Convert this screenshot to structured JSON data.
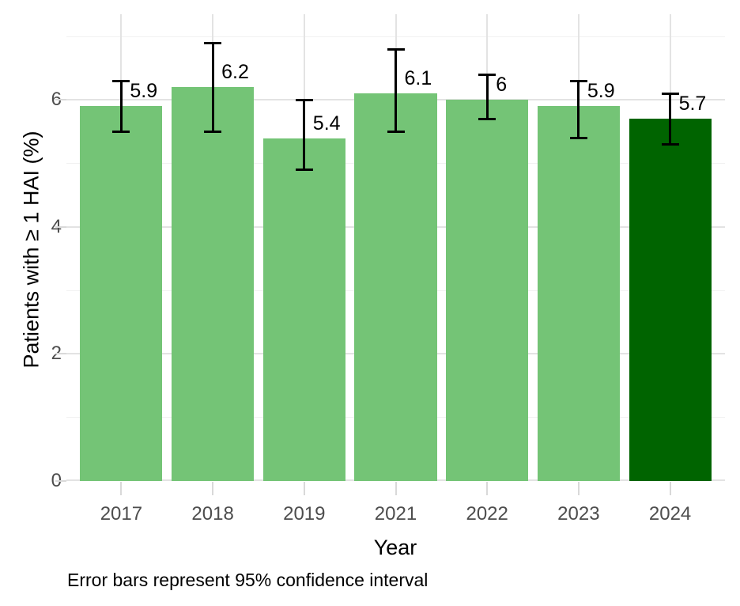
{
  "chart_data": {
    "type": "bar",
    "title": "",
    "xlabel": "Year",
    "ylabel": "Patients with ≥ 1 HAI (%)",
    "caption": "Error bars represent 95% confidence interval",
    "categories": [
      "2017",
      "2018",
      "2019",
      "2021",
      "2022",
      "2023",
      "2024"
    ],
    "values": [
      5.9,
      6.2,
      5.4,
      6.1,
      6.0,
      5.9,
      5.7
    ],
    "bar_value_labels": [
      "5.9",
      "6.2",
      "5.4",
      "6.1",
      "6",
      "5.9",
      "5.7"
    ],
    "error_bars": {
      "meaning": "95% confidence interval",
      "lower": [
        5.5,
        5.5,
        4.9,
        5.5,
        5.7,
        5.4,
        5.3
      ],
      "upper": [
        6.3,
        6.9,
        6.0,
        6.8,
        6.4,
        6.3,
        6.1
      ]
    },
    "bar_colors": [
      "#74c476",
      "#74c476",
      "#74c476",
      "#74c476",
      "#74c476",
      "#74c476",
      "#006400"
    ],
    "y_axis": {
      "tick_labels": [
        "0",
        "2",
        "4",
        "6"
      ],
      "ticks": [
        0,
        2,
        4,
        6
      ],
      "minor_gridlines": [
        1,
        3,
        5,
        7
      ],
      "ylim": [
        0,
        7.35
      ]
    },
    "legend": "none",
    "grid": true,
    "colors": {
      "bar_light_green": "#74c476",
      "bar_dark_green": "#006400",
      "grid_major": "#e3e3e3",
      "grid_minor": "#f1f1f1",
      "axis_text": "#4d4d4d",
      "error_bar": "#000000",
      "background": "#ffffff"
    }
  }
}
